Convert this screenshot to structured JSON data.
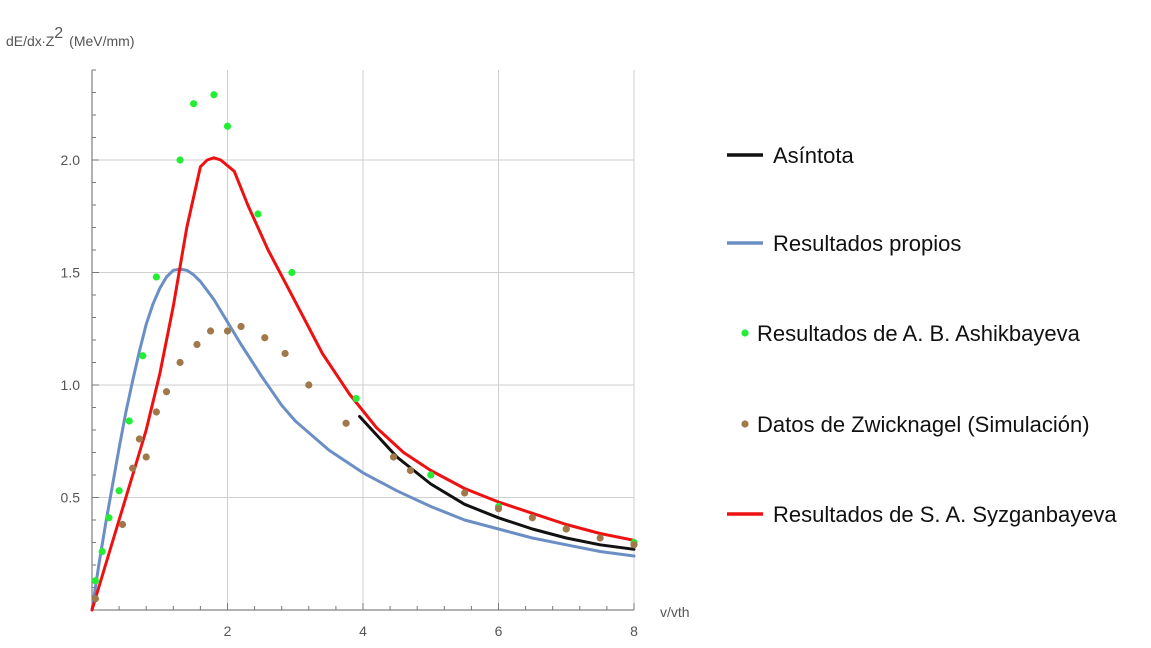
{
  "chart_data": {
    "type": "line",
    "title": "",
    "ylabel_base": "dE/dx∙Z",
    "ylabel_exp": "2",
    "ylabel_unit": "(MeV/mm)",
    "xlabel": "v/vth",
    "xlim": [
      0,
      8
    ],
    "ylim": [
      0,
      2.4
    ],
    "x_ticks": [
      2,
      4,
      6,
      8
    ],
    "y_ticks": [
      0.5,
      1.0,
      1.5,
      2.0
    ],
    "x_tick_labels": [
      "2",
      "4",
      "6",
      "8"
    ],
    "y_tick_labels": [
      "0.5",
      "1.0",
      "1.5",
      "2.0"
    ],
    "grid": true,
    "legend_position": "right",
    "series": [
      {
        "name": "Asíntota",
        "kind": "line",
        "color": "#111111",
        "x": [
          3.95,
          4.5,
          5.0,
          5.5,
          6.0,
          6.5,
          7.0,
          7.5,
          8.0
        ],
        "y": [
          0.86,
          0.68,
          0.56,
          0.47,
          0.41,
          0.36,
          0.32,
          0.29,
          0.27
        ]
      },
      {
        "name": "Resultados propios",
        "kind": "line",
        "color": "#6b8fc4",
        "x": [
          0.0,
          0.1,
          0.2,
          0.3,
          0.4,
          0.5,
          0.6,
          0.7,
          0.8,
          0.9,
          1.0,
          1.1,
          1.2,
          1.3,
          1.4,
          1.5,
          1.6,
          1.8,
          2.0,
          2.2,
          2.5,
          2.8,
          3.0,
          3.5,
          4.0,
          4.5,
          5.0,
          5.5,
          6.0,
          6.5,
          7.0,
          7.5,
          8.0
        ],
        "y": [
          0.0,
          0.2,
          0.38,
          0.55,
          0.72,
          0.88,
          1.02,
          1.15,
          1.27,
          1.36,
          1.43,
          1.48,
          1.51,
          1.515,
          1.51,
          1.49,
          1.46,
          1.38,
          1.28,
          1.18,
          1.04,
          0.91,
          0.84,
          0.71,
          0.61,
          0.53,
          0.46,
          0.4,
          0.36,
          0.32,
          0.29,
          0.26,
          0.24
        ]
      },
      {
        "name": "Resultados de A. B. Ashikbayeva",
        "kind": "scatter",
        "color": "#22ee33",
        "x": [
          0.05,
          0.15,
          0.25,
          0.4,
          0.55,
          0.75,
          0.95,
          1.3,
          1.5,
          1.8,
          2.0,
          2.45,
          2.95,
          3.9,
          5.0,
          6.0,
          7.0,
          8.0
        ],
        "y": [
          0.13,
          0.26,
          0.41,
          0.53,
          0.84,
          1.13,
          1.48,
          2.0,
          2.25,
          2.29,
          2.15,
          1.76,
          1.5,
          0.94,
          0.6,
          0.46,
          0.36,
          0.3
        ]
      },
      {
        "name": "Datos de Zwicknagel (Simulación)",
        "kind": "scatter",
        "color": "#a0784a",
        "x": [
          0.05,
          0.45,
          0.6,
          0.7,
          0.8,
          0.95,
          1.1,
          1.3,
          1.55,
          1.75,
          2.0,
          2.2,
          2.55,
          2.85,
          3.2,
          3.75,
          4.45,
          4.7,
          5.5,
          6.0,
          6.5,
          7.0,
          7.5,
          8.0
        ],
        "y": [
          0.05,
          0.38,
          0.63,
          0.76,
          0.68,
          0.88,
          0.97,
          1.1,
          1.18,
          1.24,
          1.24,
          1.26,
          1.21,
          1.14,
          1.0,
          0.83,
          0.68,
          0.62,
          0.52,
          0.45,
          0.41,
          0.36,
          0.32,
          0.29
        ]
      },
      {
        "name": "Resultados de S. A. Syzganbayeva",
        "kind": "line",
        "color": "#ee1111",
        "x": [
          0.0,
          0.2,
          0.4,
          0.6,
          0.8,
          1.0,
          1.2,
          1.4,
          1.6,
          1.7,
          1.8,
          1.9,
          2.1,
          2.3,
          2.6,
          3.0,
          3.4,
          3.8,
          4.2,
          4.6,
          5.0,
          5.5,
          6.0,
          6.5,
          7.0,
          7.5,
          8.0
        ],
        "y": [
          0.0,
          0.2,
          0.4,
          0.6,
          0.8,
          1.05,
          1.35,
          1.7,
          1.97,
          2.0,
          2.01,
          2.0,
          1.95,
          1.8,
          1.6,
          1.37,
          1.14,
          0.96,
          0.81,
          0.7,
          0.62,
          0.54,
          0.48,
          0.43,
          0.38,
          0.34,
          0.31
        ]
      }
    ]
  }
}
